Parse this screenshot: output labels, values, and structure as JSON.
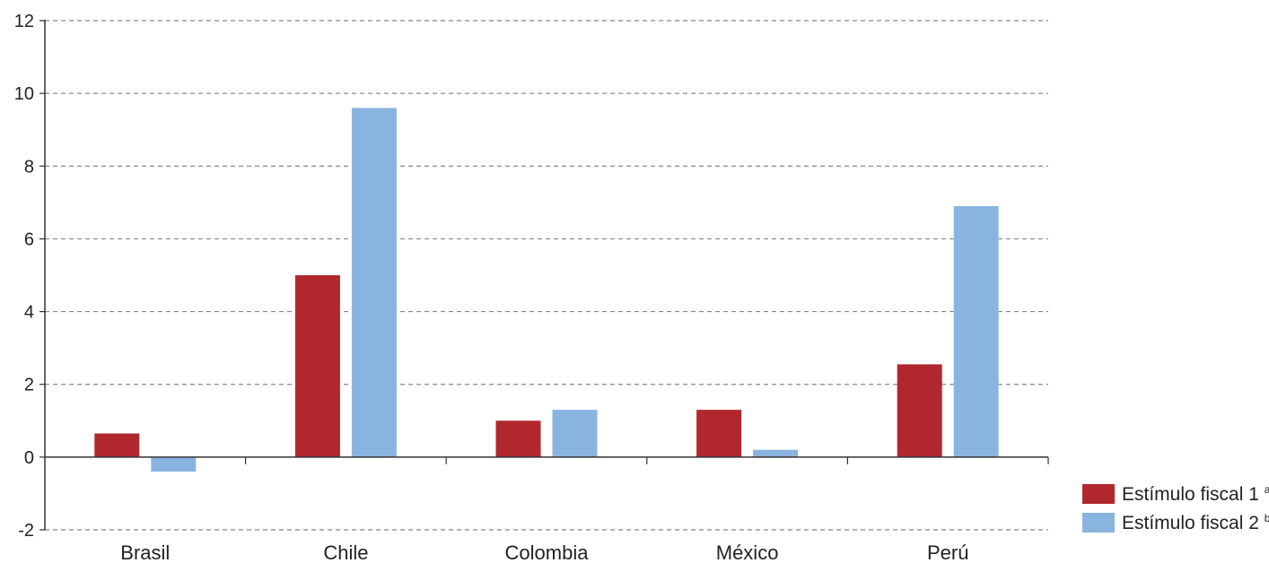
{
  "chart_data": {
    "type": "bar",
    "categories": [
      "Brasil",
      "Chile",
      "Colombia",
      "México",
      "Perú"
    ],
    "series": [
      {
        "name": "Estímulo fiscal 1",
        "marker": "a",
        "color": "#b0282e",
        "values": [
          0.65,
          5.0,
          1.0,
          1.3,
          2.55
        ]
      },
      {
        "name": "Estímulo fiscal 2",
        "marker": "b",
        "color": "#8ab4e0",
        "values": [
          -0.4,
          9.6,
          1.3,
          0.2,
          6.9
        ]
      }
    ],
    "ylim": [
      -2,
      12
    ],
    "yticks": [
      "12",
      "10",
      "8",
      "6",
      "4",
      "2",
      "0",
      "-2"
    ],
    "grid": true,
    "legend_position": "bottom-right"
  }
}
